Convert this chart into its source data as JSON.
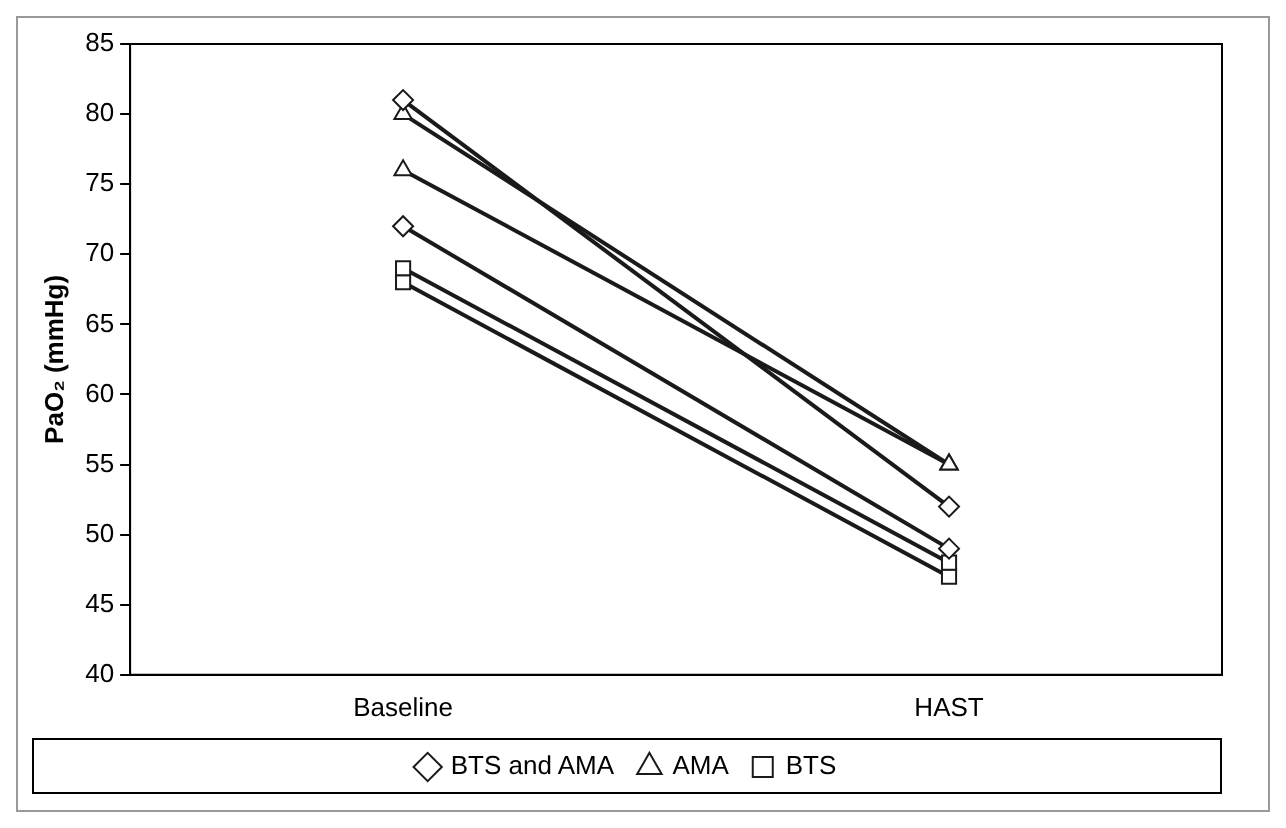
{
  "chart_data": {
    "type": "line",
    "ylabel": "PaO₂ (mmHg)",
    "categories": [
      "Baseline",
      "HAST"
    ],
    "series": [
      {
        "name": "BTS and AMA",
        "color": "#1a1a1a",
        "marker": "diamond",
        "values": [
          81,
          52
        ]
      },
      {
        "color": "#1a1a1a",
        "marker": "diamond",
        "values": [
          72,
          49
        ]
      },
      {
        "name": "AMA",
        "color": "#1a1a1a",
        "marker": "triangle",
        "values": [
          80,
          55
        ]
      },
      {
        "color": "#1a1a1a",
        "marker": "triangle",
        "values": [
          76,
          55
        ]
      },
      {
        "name": "BTS",
        "color": "#1a1a1a",
        "marker": "square",
        "values": [
          69,
          48
        ]
      },
      {
        "color": "#1a1a1a",
        "marker": "square",
        "values": [
          68,
          47
        ]
      }
    ],
    "ylim": [
      40,
      85
    ],
    "yticks": [
      40,
      45,
      50,
      55,
      60,
      65,
      70,
      75,
      80,
      85
    ],
    "grid": false,
    "legend": "bottom"
  }
}
